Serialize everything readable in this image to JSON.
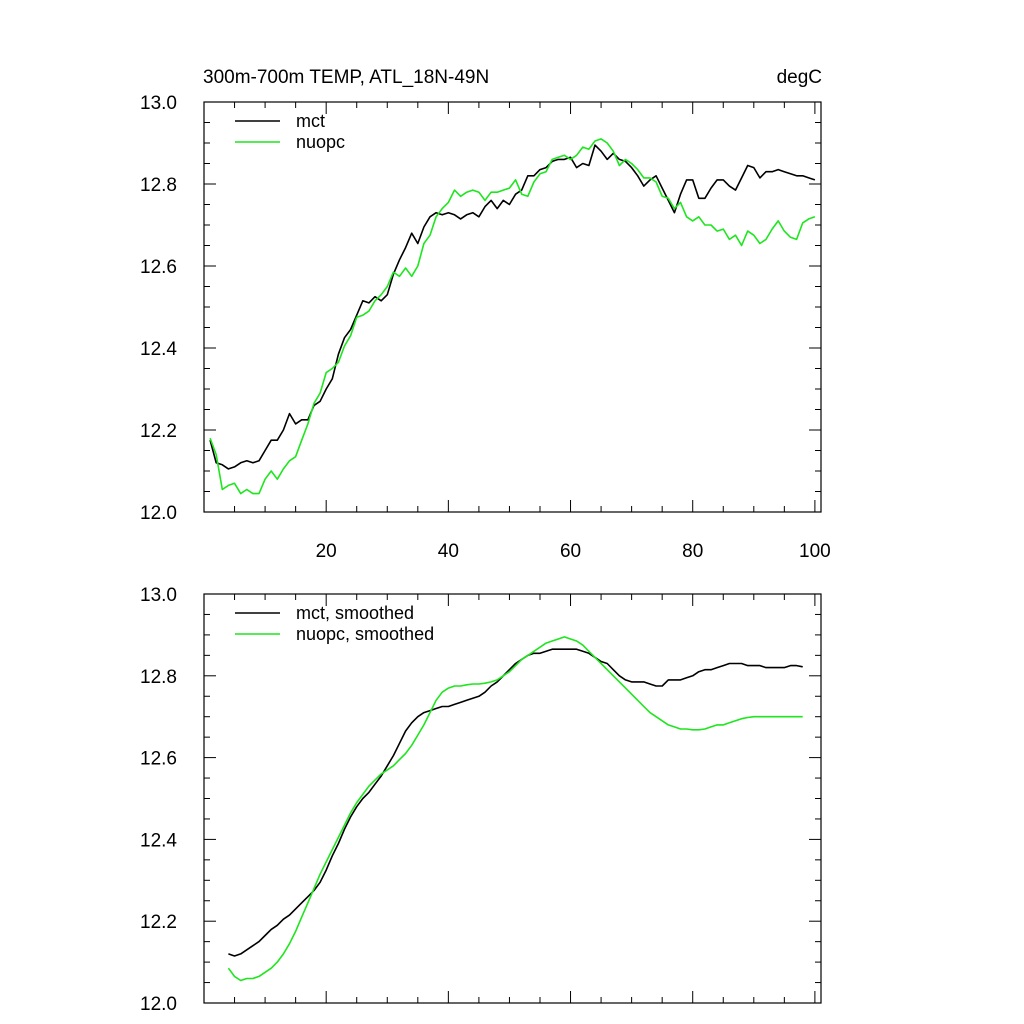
{
  "chart_data": [
    {
      "type": "line",
      "title_left": "300m-700m TEMP, ATL_18N-49N",
      "title_right": "degC",
      "xlim": [
        0,
        101
      ],
      "ylim": [
        12.0,
        13.0
      ],
      "yticks": [
        "12.0",
        "12.2",
        "12.4",
        "12.6",
        "12.8",
        "13.0"
      ],
      "xticks": [
        "20",
        "40",
        "60",
        "80",
        "100"
      ],
      "series": [
        {
          "name": "mct",
          "color": "#000000",
          "x_start": 1,
          "values": [
            12.175,
            12.12,
            12.115,
            12.105,
            12.11,
            12.12,
            12.125,
            12.12,
            12.125,
            12.15,
            12.175,
            12.175,
            12.2,
            12.24,
            12.215,
            12.225,
            12.225,
            12.26,
            12.27,
            12.3,
            12.325,
            12.385,
            12.425,
            12.445,
            12.48,
            12.515,
            12.51,
            12.525,
            12.515,
            12.53,
            12.58,
            12.615,
            12.645,
            12.68,
            12.655,
            12.695,
            12.72,
            12.73,
            12.725,
            12.73,
            12.725,
            12.715,
            12.725,
            12.73,
            12.72,
            12.745,
            12.76,
            12.74,
            12.76,
            12.75,
            12.775,
            12.785,
            12.82,
            12.82,
            12.835,
            12.84,
            12.855,
            12.86,
            12.86,
            12.865,
            12.84,
            12.85,
            12.845,
            12.895,
            12.88,
            12.86,
            12.875,
            12.86,
            12.855,
            12.84,
            12.82,
            12.795,
            12.81,
            12.82,
            12.79,
            12.76,
            12.73,
            12.775,
            12.81,
            12.81,
            12.765,
            12.765,
            12.79,
            12.81,
            12.81,
            12.795,
            12.785,
            12.815,
            12.845,
            12.84,
            12.815,
            12.83,
            12.83,
            12.835,
            12.83,
            12.825,
            12.82,
            12.82,
            12.815,
            12.81
          ]
        },
        {
          "name": "nuopc",
          "color": "#1ee61e",
          "x_start": 1,
          "values": [
            12.18,
            12.14,
            12.055,
            12.065,
            12.07,
            12.045,
            12.055,
            12.045,
            12.045,
            12.08,
            12.1,
            12.08,
            12.105,
            12.125,
            12.135,
            12.175,
            12.215,
            12.265,
            12.29,
            12.34,
            12.35,
            12.365,
            12.405,
            12.43,
            12.475,
            12.48,
            12.49,
            12.515,
            12.53,
            12.55,
            12.585,
            12.575,
            12.595,
            12.575,
            12.6,
            12.655,
            12.675,
            12.72,
            12.74,
            12.755,
            12.785,
            12.77,
            12.78,
            12.785,
            12.78,
            12.76,
            12.78,
            12.78,
            12.785,
            12.79,
            12.81,
            12.775,
            12.77,
            12.805,
            12.825,
            12.83,
            12.86,
            12.865,
            12.87,
            12.86,
            12.87,
            12.89,
            12.885,
            12.905,
            12.91,
            12.9,
            12.88,
            12.845,
            12.86,
            12.85,
            12.835,
            12.815,
            12.815,
            12.805,
            12.77,
            12.765,
            12.74,
            12.755,
            12.72,
            12.71,
            12.72,
            12.7,
            12.7,
            12.685,
            12.69,
            12.665,
            12.675,
            12.65,
            12.685,
            12.675,
            12.655,
            12.665,
            12.69,
            12.71,
            12.685,
            12.67,
            12.665,
            12.705,
            12.715,
            12.72
          ]
        }
      ]
    },
    {
      "type": "line",
      "xlim": [
        0,
        101
      ],
      "ylim": [
        12.0,
        13.0
      ],
      "yticks": [
        "12.0",
        "12.2",
        "12.4",
        "12.6",
        "12.8",
        "13.0"
      ],
      "series": [
        {
          "name": "mct, smoothed",
          "color": "#000000",
          "x_start": 4,
          "values": [
            12.12,
            12.115,
            12.12,
            12.13,
            12.14,
            12.15,
            12.165,
            12.18,
            12.19,
            12.205,
            12.215,
            12.23,
            12.245,
            12.26,
            12.275,
            12.295,
            12.325,
            12.36,
            12.39,
            12.425,
            12.455,
            12.48,
            12.5,
            12.515,
            12.535,
            12.555,
            12.58,
            12.605,
            12.635,
            12.665,
            12.685,
            12.7,
            12.71,
            12.715,
            12.72,
            12.725,
            12.725,
            12.73,
            12.735,
            12.74,
            12.745,
            12.75,
            12.76,
            12.775,
            12.785,
            12.8,
            12.815,
            12.83,
            12.84,
            12.85,
            12.855,
            12.855,
            12.86,
            12.865,
            12.865,
            12.865,
            12.865,
            12.865,
            12.86,
            12.855,
            12.845,
            12.835,
            12.83,
            12.815,
            12.8,
            12.79,
            12.785,
            12.785,
            12.785,
            12.78,
            12.775,
            12.775,
            12.79,
            12.79,
            12.79,
            12.795,
            12.8,
            12.81,
            12.815,
            12.815,
            12.82,
            12.825,
            12.83,
            12.83,
            12.83,
            12.825,
            12.825,
            12.825,
            12.82,
            12.82,
            12.82,
            12.82,
            12.825,
            12.825,
            12.822
          ]
        },
        {
          "name": "nuopc, smoothed",
          "color": "#1ee61e",
          "x_start": 4,
          "values": [
            12.085,
            12.065,
            12.055,
            12.06,
            12.06,
            12.065,
            12.075,
            12.085,
            12.1,
            12.12,
            12.145,
            12.175,
            12.21,
            12.245,
            12.28,
            12.315,
            12.345,
            12.375,
            12.405,
            12.435,
            12.465,
            12.49,
            12.51,
            12.53,
            12.545,
            12.56,
            12.57,
            12.58,
            12.595,
            12.61,
            12.63,
            12.655,
            12.68,
            12.71,
            12.74,
            12.76,
            12.77,
            12.775,
            12.775,
            12.778,
            12.78,
            12.78,
            12.782,
            12.785,
            12.79,
            12.8,
            12.81,
            12.825,
            12.84,
            12.85,
            12.86,
            12.87,
            12.88,
            12.885,
            12.89,
            12.895,
            12.89,
            12.885,
            12.875,
            12.86,
            12.845,
            12.83,
            12.815,
            12.8,
            12.785,
            12.77,
            12.755,
            12.74,
            12.725,
            12.71,
            12.7,
            12.69,
            12.68,
            12.675,
            12.67,
            12.67,
            12.668,
            12.668,
            12.67,
            12.675,
            12.68,
            12.68,
            12.685,
            12.69,
            12.695,
            12.698,
            12.7,
            12.7,
            12.7,
            12.7,
            12.7,
            12.7,
            12.7,
            12.7,
            12.7
          ]
        }
      ]
    }
  ]
}
